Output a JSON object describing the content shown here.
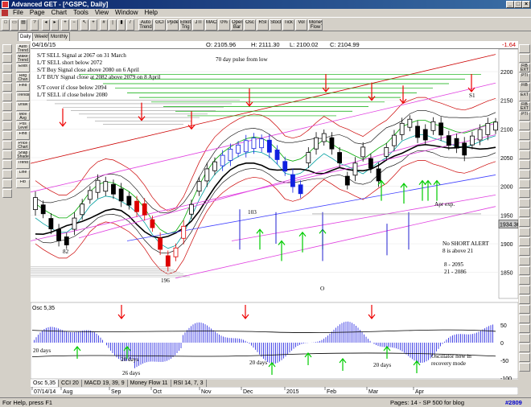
{
  "window": {
    "title": "Advanced GET - [^GSPC, Daily]",
    "btn_min": "_",
    "btn_max": "□",
    "btn_close": "×"
  },
  "menu": [
    "File",
    "Page",
    "Chart",
    "Tools",
    "View",
    "Window",
    "Help"
  ],
  "toolbar": [
    "Auto Trend",
    "GCI",
    "Ppdex",
    "Elliott Trig",
    "JTI",
    "MACD",
    "0%",
    "Open Bar",
    "Osc",
    "RSI",
    "Stock",
    "Tick",
    "Vol",
    "Money Flow"
  ],
  "period_tabs": [
    "Daily",
    "Weekly",
    "Monthly"
  ],
  "info": {
    "date": "04/16/15",
    "open": "O: 2105.96",
    "high": "H: 2111.30",
    "low": "L: 2100.02",
    "close": "C: 2104.99",
    "change": "-1.64"
  },
  "left_tools": [
    "Auto Trend",
    "Make Trend",
    "Elliot",
    "Reg Chan",
    "Find",
    "Trends",
    "Draw",
    "Mov Avg",
    "Pos Level",
    "Find",
    "Price Chart",
    "Snap Shade",
    "Trend",
    "Line",
    "Fib"
  ],
  "right_tools": [
    "FIB EXT",
    "PTI",
    "FIB EXT",
    "PTI",
    "FIB",
    "EXT"
  ],
  "chart_data": {
    "type": "line",
    "title": "",
    "price_axis": {
      "ticks": [
        2200,
        2150,
        2100,
        2050,
        2000,
        1950,
        1900,
        1850
      ],
      "last_price": "1934.36"
    },
    "osc_axis": {
      "ticks": [
        50,
        0,
        -50,
        -100
      ],
      "label": "Osc 5,35"
    },
    "months": [
      "07/14/14",
      "Aug",
      "Sep",
      "Oct",
      "Nov",
      "Dec",
      "2015",
      "Feb",
      "Mar",
      "Apr"
    ],
    "notes": {
      "l1": "S/T SELL Signal at 2067 on 31 March",
      "l2": "L/T SELL short below 2072",
      "l3": "S/T Buy Signal close above 2080 on 6 April",
      "l4": "L/T BUY Signal close at 2082 above 2079 on 8 April",
      "l5": "S/T cover if close below 2094",
      "l6": "L/T SELL if close below 2080",
      "pulse": "70 day pulse from low",
      "s1": "S1",
      "apr": "Apr exp.",
      "alert1": "No SHORT ALERT",
      "alert2": "8 is above 21",
      "alert3": "8    - 2095",
      "alert4": "21  - 2086",
      "w82": "82",
      "w196": "196",
      "w103": "103",
      "wO": "O",
      "d1": "20 days",
      "d2": "20 days",
      "d3": "26 days",
      "d4": "20 days",
      "d5": "20 days",
      "osc1": "Oscillator now in",
      "osc2": "recovery mode"
    },
    "series": [
      {
        "values": [
          1970,
          1960,
          1935,
          1915,
          1905,
          1935,
          1960,
          1985,
          2000,
          2000,
          1995,
          1985,
          1975,
          1965,
          1960,
          1935,
          1900,
          1870,
          1885,
          1920,
          1960,
          2000,
          2020,
          2035,
          2045,
          2055,
          2065,
          2070,
          2075,
          2075,
          2070,
          2055,
          2035,
          2010,
          1995,
          2050,
          2075,
          2085,
          2075,
          2050,
          2010,
          2030,
          2060,
          2040,
          2020,
          2060,
          2080,
          2100,
          2110,
          2095,
          2090,
          2105,
          2100,
          2080,
          2075,
          2065,
          2080,
          2090,
          2100,
          2105
        ]
      }
    ]
  },
  "bottom_tabs": [
    "Osc 5,35",
    "CCI 20",
    "MACD 19, 39, 9",
    "Money Flow 11",
    "RSI 14, 7, 3"
  ],
  "status": {
    "left": "For Help, press F1",
    "right": "Pages: 14 - SP 500 for blog",
    "badge": "#2809"
  }
}
